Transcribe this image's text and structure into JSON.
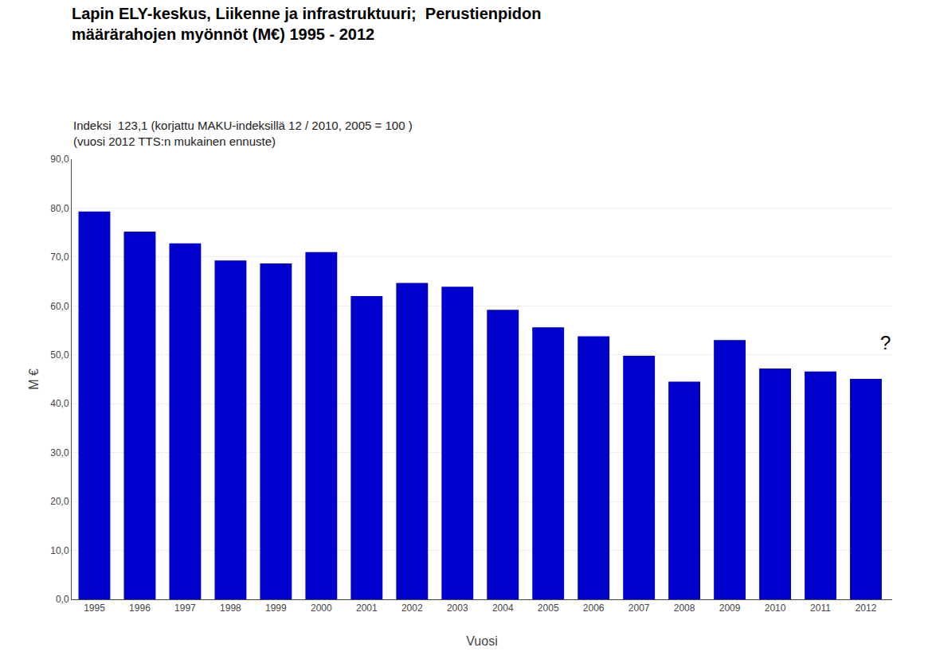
{
  "chart_data": {
    "type": "bar",
    "title": [
      "Lapin ELY-keskus, Liikenne ja infrastruktuuri;  Perustienpidon",
      "määrärahojen myönnöt (M€) 1995 - 2012"
    ],
    "subtitle": [
      "Indeksi  123,1 (korjattu MAKU-indeksillä 12 / 2010, 2005 = 100 )",
      "(vuosi 2012 TTS:n mukainen ennuste)"
    ],
    "categories": [
      "1995",
      "1996",
      "1997",
      "1998",
      "1999",
      "2000",
      "2001",
      "2002",
      "2003",
      "2004",
      "2005",
      "2006",
      "2007",
      "2008",
      "2009",
      "2010",
      "2011",
      "2012"
    ],
    "values": [
      79.3,
      75.2,
      72.8,
      69.3,
      68.7,
      71.0,
      62.0,
      64.7,
      63.9,
      59.2,
      55.6,
      53.8,
      49.8,
      44.5,
      53.0,
      47.2,
      46.6,
      45.1
    ],
    "color": "#0000CC",
    "xlabel": "Vuosi",
    "ylabel": "M €",
    "ylim": [
      0,
      90
    ],
    "yticks": [
      {
        "value": 0,
        "label": "0,0"
      },
      {
        "value": 10,
        "label": "10,0"
      },
      {
        "value": 20,
        "label": "20,0"
      },
      {
        "value": 30,
        "label": "30,0"
      },
      {
        "value": 40,
        "label": "40,0"
      },
      {
        "value": 50,
        "label": "50,0"
      },
      {
        "value": 60,
        "label": "60,0"
      },
      {
        "value": 70,
        "label": "70,0"
      },
      {
        "value": 80,
        "label": "80,0"
      },
      {
        "value": 90,
        "label": "90,0"
      }
    ],
    "grid": true,
    "annotations": [
      "?"
    ]
  }
}
